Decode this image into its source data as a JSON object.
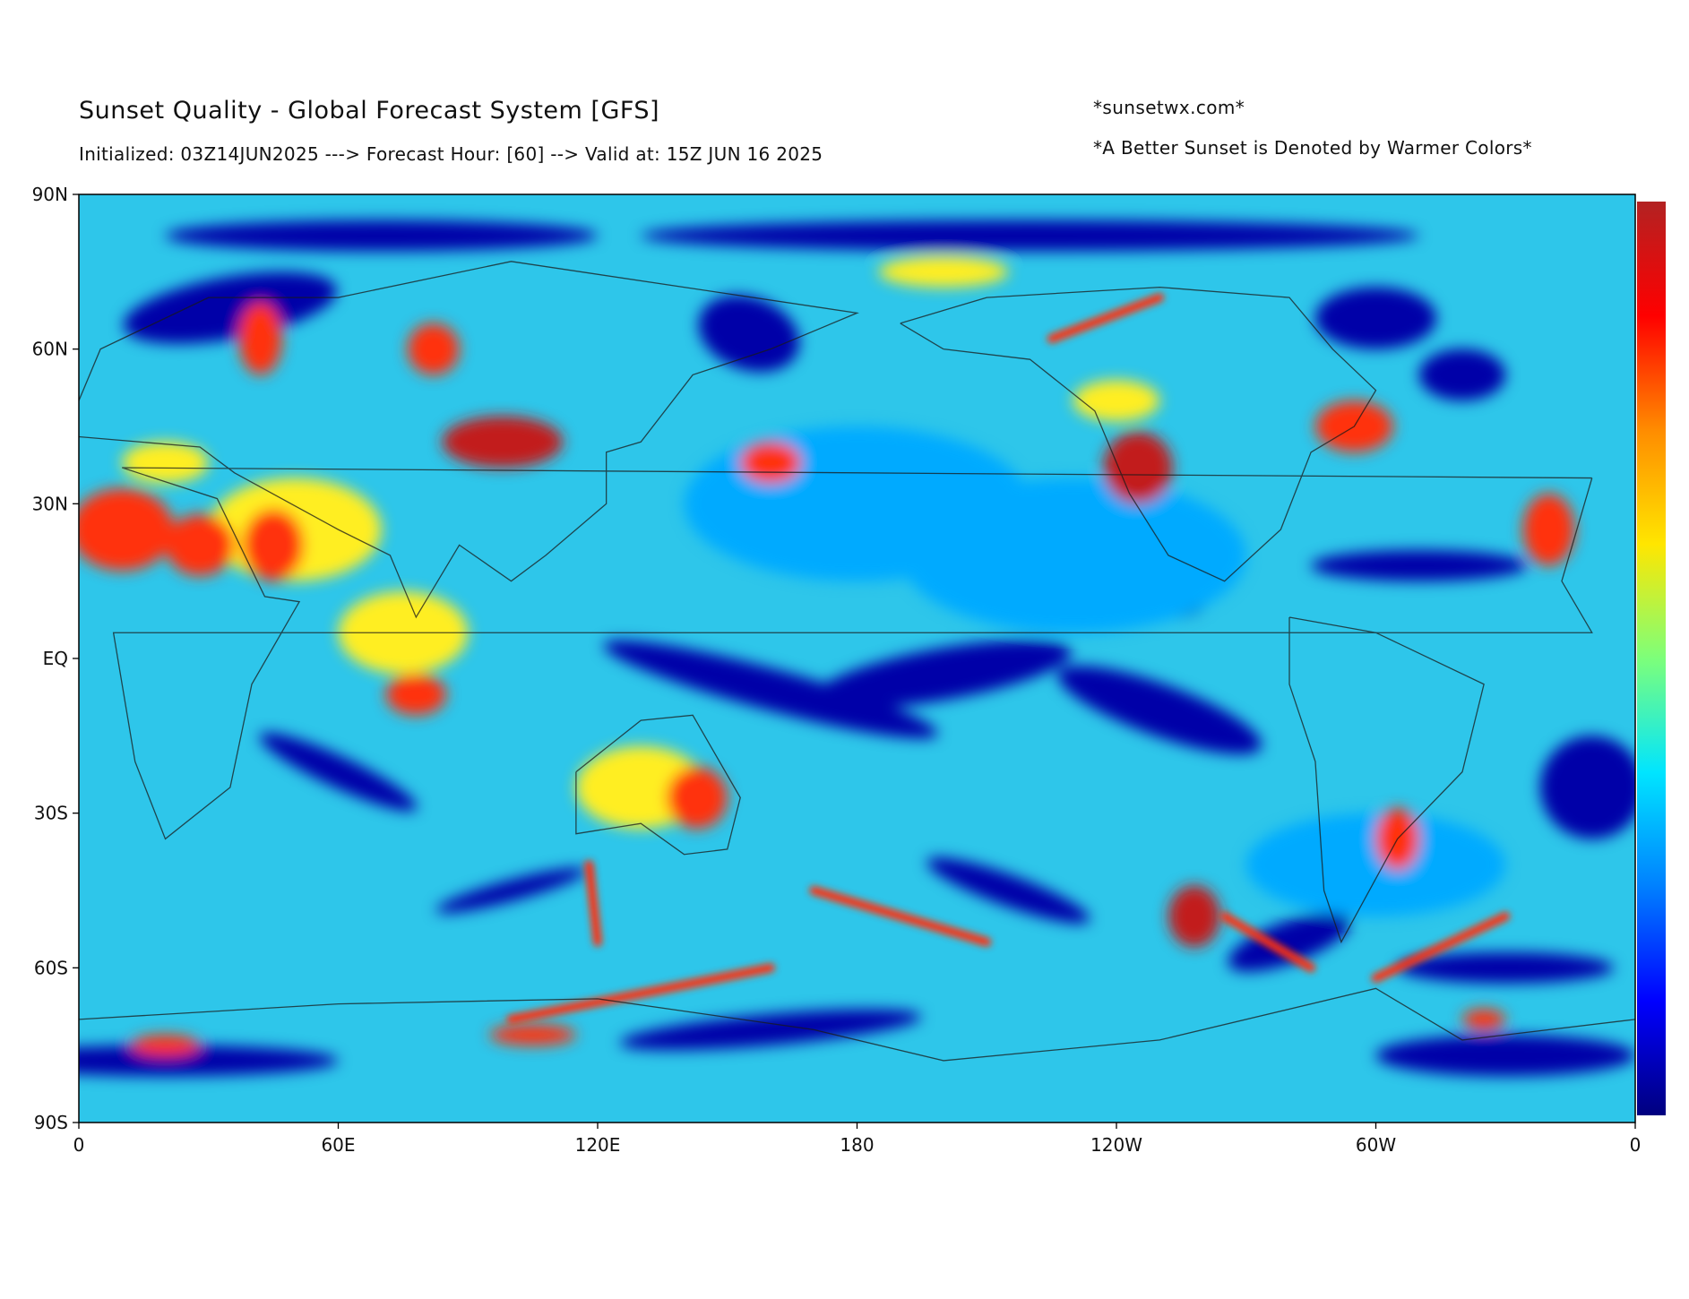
{
  "header": {
    "title": "Sunset Quality - Global Forecast System [GFS]",
    "subtitle": "Initialized: 03Z14JUN2025 ---> Forecast Hour: [60] --> Valid at: 15Z JUN 16 2025",
    "credit": "*sunsetwx.com*",
    "note": "*A Better Sunset is Denoted by Warmer Colors*"
  },
  "map": {
    "projection": "equirectangular",
    "lon_ticks": [
      "0",
      "60E",
      "120E",
      "180",
      "120W",
      "60W",
      "0"
    ],
    "lat_ticks": [
      "90N",
      "60N",
      "30N",
      "EQ",
      "30S",
      "60S",
      "90S"
    ],
    "colorbar": {
      "orientation": "vertical",
      "colors_bottom_to_top": [
        "#00007f",
        "#0000ff",
        "#0080ff",
        "#00e5ff",
        "#7dff7a",
        "#ffe600",
        "#ff8c00",
        "#ff0000",
        "#b22222"
      ]
    },
    "palette": {
      "low": "#0000a8",
      "mid_low": "#00aaff",
      "mid": "#33ccee",
      "mid_high": "#ffee22",
      "high": "#ff3311",
      "max": "#c21f1f"
    }
  }
}
